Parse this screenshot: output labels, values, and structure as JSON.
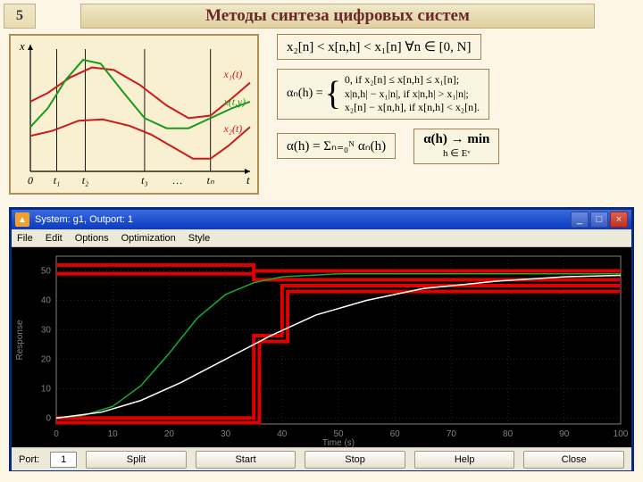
{
  "page_number": "5",
  "title": "Методы синтеза цифровых систем",
  "top_chart": {
    "type": "line",
    "background_color": "#f8f0d0",
    "border_color": "#b09050",
    "axis_color": "#000000",
    "grid_vertical_color": "#000000",
    "xlabel": "t",
    "ylabel": "x",
    "x_ticks": [
      "0",
      "t₁",
      "t₂",
      "t₃",
      "…",
      "tₙ"
    ],
    "x_tick_positions": [
      0,
      0.12,
      0.25,
      0.52,
      0.67,
      0.82
    ],
    "xlim": [
      0,
      1
    ],
    "ylim": [
      0,
      1
    ],
    "series": [
      {
        "name": "x₁(t)",
        "label": "x₁(t)",
        "color": "#cc1a1a",
        "line_width": 2,
        "points": [
          [
            0,
            0.55
          ],
          [
            0.08,
            0.62
          ],
          [
            0.18,
            0.74
          ],
          [
            0.28,
            0.82
          ],
          [
            0.38,
            0.8
          ],
          [
            0.5,
            0.68
          ],
          [
            0.62,
            0.52
          ],
          [
            0.72,
            0.42
          ],
          [
            0.82,
            0.44
          ],
          [
            0.92,
            0.58
          ],
          [
            1.0,
            0.7
          ]
        ],
        "label_pos": [
          0.88,
          0.74
        ]
      },
      {
        "name": "x₂(t)",
        "label": "x₂(t)",
        "color": "#cc1a1a",
        "line_width": 2,
        "points": [
          [
            0,
            0.28
          ],
          [
            0.1,
            0.32
          ],
          [
            0.22,
            0.4
          ],
          [
            0.33,
            0.41
          ],
          [
            0.45,
            0.36
          ],
          [
            0.55,
            0.29
          ],
          [
            0.65,
            0.19
          ],
          [
            0.74,
            0.1
          ],
          [
            0.82,
            0.1
          ],
          [
            0.9,
            0.2
          ],
          [
            1.0,
            0.35
          ]
        ],
        "label_pos": [
          0.88,
          0.31
        ]
      },
      {
        "name": "x(t,γ)",
        "label": "x(t,γ)",
        "color": "#1a9a1a",
        "line_width": 2,
        "points": [
          [
            0,
            0.35
          ],
          [
            0.08,
            0.5
          ],
          [
            0.16,
            0.72
          ],
          [
            0.24,
            0.88
          ],
          [
            0.32,
            0.85
          ],
          [
            0.42,
            0.63
          ],
          [
            0.52,
            0.42
          ],
          [
            0.62,
            0.34
          ],
          [
            0.72,
            0.34
          ],
          [
            0.82,
            0.42
          ],
          [
            0.92,
            0.5
          ],
          [
            1.0,
            0.55
          ]
        ],
        "label_pos": [
          0.88,
          0.52
        ]
      }
    ]
  },
  "formulas": {
    "inequality": "x₂[n] < x[n,h] < x₁[n]    ∀n ∈ [0, N]",
    "piecewise_prefix": "αₙ(h) = ",
    "piecewise_lines": [
      "0,   if  x₂[n] ≤ x[n,h] ≤ x₁[n];",
      "x|n,h| − x₁|n|,   if  x|n,h| > x₁|n|;",
      "x₂[n] − x[n,h],  if  x[n,h] < x₂[n]."
    ],
    "sum": "α(h) = Σₙ₌₀ᴺ αₙ(h)",
    "min": "α(h) → min",
    "min_sub": "h ∈ Eᵛ"
  },
  "sim_window": {
    "title": "System: g1, Outport: 1",
    "menus": [
      "File",
      "Edit",
      "Options",
      "Optimization",
      "Style"
    ],
    "plot": {
      "type": "line",
      "background_color": "#000000",
      "axis_color": "#808080",
      "grid_color": "#444444",
      "axis_label_color": "#808080",
      "xlabel": "Time (s)",
      "ylabel": "Response",
      "label_fontsize": 10,
      "tick_fontsize": 10,
      "xlim": [
        0,
        100
      ],
      "ylim": [
        -2,
        55
      ],
      "xtick_step": 10,
      "ytick_step": 10,
      "series": [
        {
          "name": "upper-bound-1",
          "type": "step",
          "color": "#e00000",
          "line_width": 4,
          "points": [
            [
              0,
              52
            ],
            [
              35,
              52
            ],
            [
              35,
              50
            ],
            [
              100,
              50
            ]
          ]
        },
        {
          "name": "upper-bound-2",
          "type": "step",
          "color": "#e00000",
          "line_width": 4,
          "points": [
            [
              0,
              49
            ],
            [
              35,
              49
            ],
            [
              35,
              47
            ],
            [
              100,
              47
            ]
          ]
        },
        {
          "name": "lower-bound-1",
          "type": "step",
          "color": "#e00000",
          "line_width": 4,
          "points": [
            [
              0,
              0
            ],
            [
              35,
              0
            ],
            [
              35,
              28
            ],
            [
              40,
              28
            ],
            [
              40,
              45
            ],
            [
              100,
              45
            ]
          ]
        },
        {
          "name": "lower-bound-2",
          "type": "step",
          "color": "#e00000",
          "line_width": 4,
          "points": [
            [
              0,
              -1.5
            ],
            [
              36,
              -1.5
            ],
            [
              36,
              26
            ],
            [
              41,
              26
            ],
            [
              41,
              43
            ],
            [
              100,
              43
            ]
          ]
        },
        {
          "name": "response-green",
          "type": "line",
          "color": "#10b030",
          "line_width": 1.5,
          "points": [
            [
              0,
              0
            ],
            [
              5,
              1
            ],
            [
              10,
              4
            ],
            [
              15,
              11
            ],
            [
              20,
              22
            ],
            [
              25,
              34
            ],
            [
              30,
              42
            ],
            [
              35,
              46
            ],
            [
              40,
              48
            ],
            [
              50,
              49
            ],
            [
              70,
              49
            ],
            [
              100,
              49
            ]
          ]
        },
        {
          "name": "response-white",
          "type": "line",
          "color": "#ffffff",
          "line_width": 1.5,
          "points": [
            [
              0,
              0
            ],
            [
              8,
              2
            ],
            [
              15,
              6
            ],
            [
              22,
              12
            ],
            [
              30,
              20
            ],
            [
              38,
              28
            ],
            [
              46,
              35
            ],
            [
              55,
              40
            ],
            [
              65,
              44
            ],
            [
              78,
              46.5
            ],
            [
              90,
              48
            ],
            [
              100,
              48.5
            ]
          ]
        }
      ]
    },
    "bottom": {
      "port_label": "Port:",
      "port_value": "1",
      "buttons": [
        "Split",
        "Start",
        "Stop",
        "Help",
        "Close"
      ]
    }
  }
}
